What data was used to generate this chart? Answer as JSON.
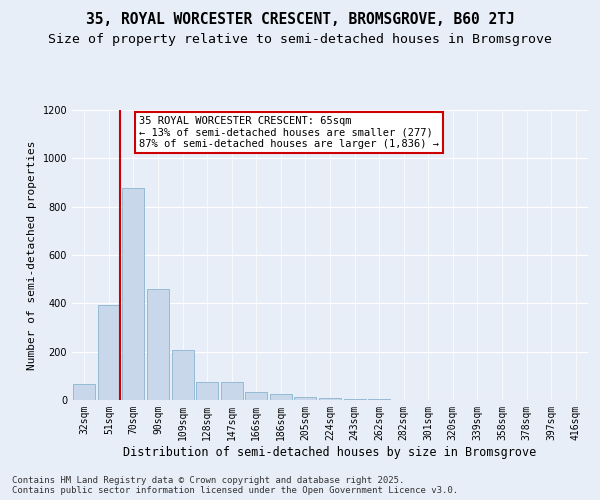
{
  "title1": "35, ROYAL WORCESTER CRESCENT, BROMSGROVE, B60 2TJ",
  "title2": "Size of property relative to semi-detached houses in Bromsgrove",
  "xlabel": "Distribution of semi-detached houses by size in Bromsgrove",
  "ylabel": "Number of semi-detached properties",
  "categories": [
    "32sqm",
    "51sqm",
    "70sqm",
    "90sqm",
    "109sqm",
    "128sqm",
    "147sqm",
    "166sqm",
    "186sqm",
    "205sqm",
    "224sqm",
    "243sqm",
    "262sqm",
    "282sqm",
    "301sqm",
    "320sqm",
    "339sqm",
    "358sqm",
    "378sqm",
    "397sqm",
    "416sqm"
  ],
  "bar_heights": [
    65,
    395,
    877,
    460,
    205,
    75,
    75,
    33,
    23,
    14,
    9,
    4,
    4,
    1,
    0,
    0,
    0,
    0,
    0,
    0,
    0
  ],
  "bar_color": "#c8d8ea",
  "bar_edge_color": "#7aaac8",
  "highlight_bar_index": 1,
  "highlight_color": "#cc0000",
  "annotation_text": "35 ROYAL WORCESTER CRESCENT: 65sqm\n← 13% of semi-detached houses are smaller (277)\n87% of semi-detached houses are larger (1,836) →",
  "ylim": [
    0,
    1200
  ],
  "yticks": [
    0,
    200,
    400,
    600,
    800,
    1000,
    1200
  ],
  "footer": "Contains HM Land Registry data © Crown copyright and database right 2025.\nContains public sector information licensed under the Open Government Licence v3.0.",
  "bg_color": "#e8eef8",
  "plot_bg_color": "#e8eef8",
  "grid_color": "#ffffff",
  "title1_fontsize": 10.5,
  "title2_fontsize": 9.5,
  "xlabel_fontsize": 8.5,
  "ylabel_fontsize": 8,
  "tick_fontsize": 7,
  "annotation_fontsize": 7.5,
  "footer_fontsize": 6.5
}
